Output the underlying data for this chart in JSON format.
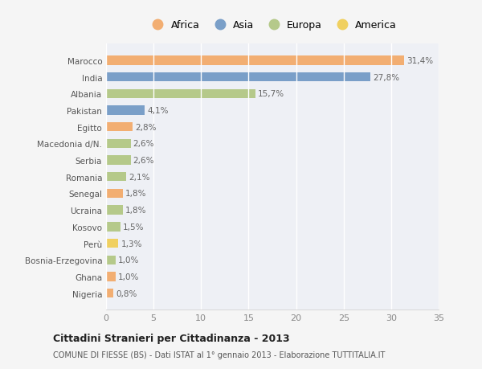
{
  "categories": [
    "Nigeria",
    "Ghana",
    "Bosnia-Erzegovina",
    "Perù",
    "Kosovo",
    "Ucraina",
    "Senegal",
    "Romania",
    "Serbia",
    "Macedonia d/N.",
    "Egitto",
    "Pakistan",
    "Albania",
    "India",
    "Marocco"
  ],
  "values": [
    0.8,
    1.0,
    1.0,
    1.3,
    1.5,
    1.8,
    1.8,
    2.1,
    2.6,
    2.6,
    2.8,
    4.1,
    15.7,
    27.8,
    31.4
  ],
  "labels": [
    "0,8%",
    "1,0%",
    "1,0%",
    "1,3%",
    "1,5%",
    "1,8%",
    "1,8%",
    "2,1%",
    "2,6%",
    "2,6%",
    "2,8%",
    "4,1%",
    "15,7%",
    "27,8%",
    "31,4%"
  ],
  "colors": [
    "#f2ae72",
    "#f2ae72",
    "#b5c98a",
    "#f0d060",
    "#b5c98a",
    "#b5c98a",
    "#f2ae72",
    "#b5c98a",
    "#b5c98a",
    "#b5c98a",
    "#f2ae72",
    "#7a9fc8",
    "#b5c98a",
    "#7a9fc8",
    "#f2ae72"
  ],
  "continent_colors": {
    "Africa": "#f2ae72",
    "Asia": "#7a9fc8",
    "Europa": "#b5c98a",
    "America": "#f0d060"
  },
  "xlim": [
    0,
    35
  ],
  "xticks": [
    0,
    5,
    10,
    15,
    20,
    25,
    30,
    35
  ],
  "title": "Cittadini Stranieri per Cittadinanza - 2013",
  "subtitle": "COMUNE DI FIESSE (BS) - Dati ISTAT al 1° gennaio 2013 - Elaborazione TUTTITALIA.IT",
  "background_color": "#f5f5f5",
  "plot_bg_color": "#eef0f5",
  "grid_color": "#ffffff"
}
